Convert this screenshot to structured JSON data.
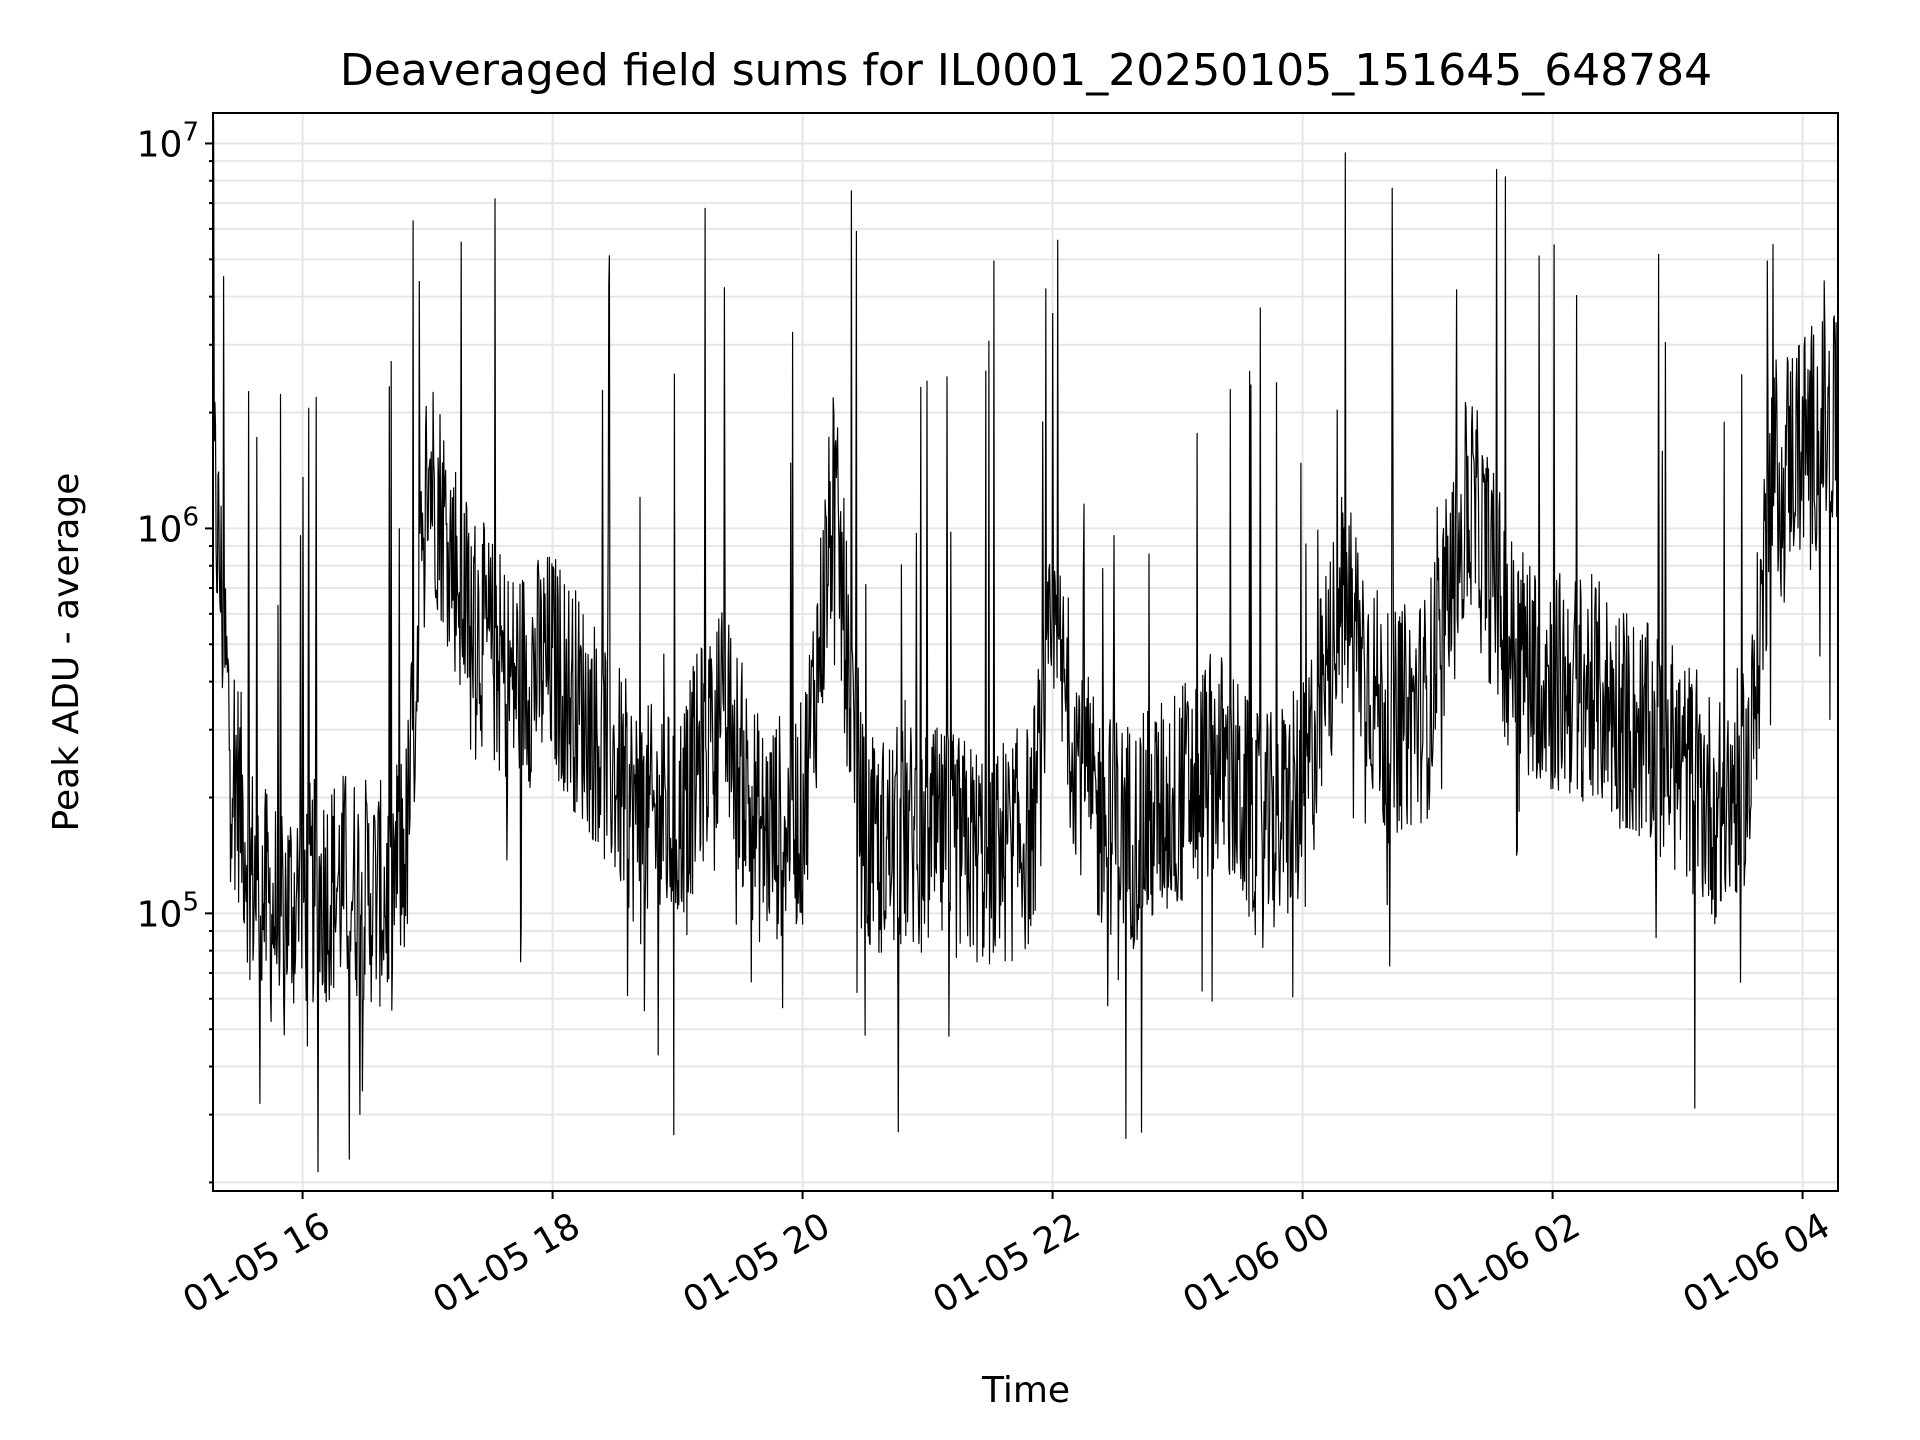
{
  "chart_data": {
    "type": "line",
    "title": "Deaveraged field sums for IL0001_20250105_151645_648784",
    "xlabel": "Time",
    "ylabel": "Peak ADU - average",
    "yscale": "log",
    "ylim": [
      19000,
      12000000
    ],
    "xlim": [
      "2025-01-05 15:17",
      "2025-01-06 04:17"
    ],
    "grid": true,
    "line_color": "#000000",
    "x_ticks": [
      {
        "time": "2025-01-05 16:00",
        "label": "01-05 16"
      },
      {
        "time": "2025-01-05 18:00",
        "label": "01-05 18"
      },
      {
        "time": "2025-01-05 20:00",
        "label": "01-05 20"
      },
      {
        "time": "2025-01-05 22:00",
        "label": "01-05 22"
      },
      {
        "time": "2025-01-06 00:00",
        "label": "01-06 00"
      },
      {
        "time": "2025-01-06 02:00",
        "label": "01-06 02"
      },
      {
        "time": "2025-01-06 04:00",
        "label": "01-06 04"
      }
    ],
    "y_ticks": [
      {
        "value": 100000,
        "base": "10",
        "exp": "5"
      },
      {
        "value": 1000000,
        "base": "10",
        "exp": "6"
      },
      {
        "value": 10000000,
        "base": "10",
        "exp": "7"
      }
    ],
    "series": [
      {
        "x": [
          "2025-01-05 15:17",
          "2025-01-05 15:25",
          "2025-01-05 15:35",
          "2025-01-05 15:45",
          "2025-01-05 16:00",
          "2025-01-05 16:20",
          "2025-01-05 16:40",
          "2025-01-05 16:50",
          "2025-01-05 17:00",
          "2025-01-05 17:20",
          "2025-01-05 17:40",
          "2025-01-05 18:00",
          "2025-01-05 18:20",
          "2025-01-05 18:40",
          "2025-01-05 19:00",
          "2025-01-05 19:20",
          "2025-01-05 19:40",
          "2025-01-05 20:00",
          "2025-01-05 20:15",
          "2025-01-05 20:30",
          "2025-01-05 20:50",
          "2025-01-05 21:10",
          "2025-01-05 21:30",
          "2025-01-05 21:50",
          "2025-01-05 22:00",
          "2025-01-05 22:20",
          "2025-01-05 22:40",
          "2025-01-05 23:00",
          "2025-01-05 23:20",
          "2025-01-05 23:40",
          "2025-01-06 00:00",
          "2025-01-06 00:20",
          "2025-01-06 00:40",
          "2025-01-06 01:00",
          "2025-01-06 01:20",
          "2025-01-06 01:40",
          "2025-01-06 02:00",
          "2025-01-06 02:20",
          "2025-01-06 02:40",
          "2025-01-06 03:00",
          "2025-01-06 03:20",
          "2025-01-06 03:35",
          "2025-01-06 03:45",
          "2025-01-06 04:00",
          "2025-01-06 04:17"
        ],
        "values": [
          1500000,
          300000,
          130000,
          100000,
          110000,
          120000,
          110000,
          150000,
          1500000,
          600000,
          400000,
          450000,
          300000,
          180000,
          170000,
          350000,
          160000,
          180000,
          1200000,
          140000,
          160000,
          150000,
          140000,
          160000,
          500000,
          180000,
          160000,
          200000,
          250000,
          160000,
          200000,
          700000,
          300000,
          350000,
          1200000,
          500000,
          400000,
          380000,
          300000,
          250000,
          180000,
          250000,
          1400000,
          1700000,
          1800000
        ]
      }
    ]
  }
}
